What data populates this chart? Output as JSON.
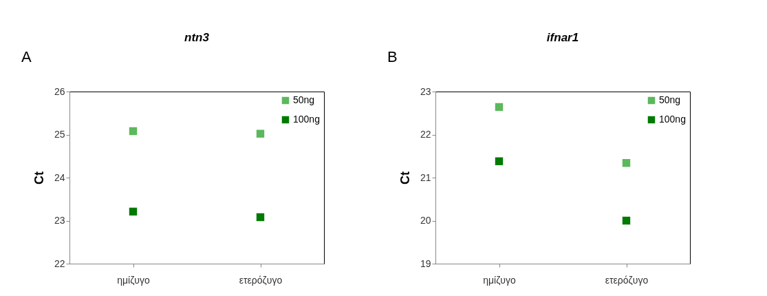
{
  "chart_data": [
    {
      "type": "scatter",
      "title": "ntn3",
      "ylabel": "Ct",
      "annotations": [
        "A"
      ],
      "categories": [
        "ημίζυγο",
        "ετερόζυγο"
      ],
      "ylim": [
        22,
        26
      ],
      "yticks": [
        22,
        23,
        24,
        25,
        26
      ],
      "grid": false,
      "legend": "top right",
      "marker": "square",
      "series": [
        {
          "name": "50ng",
          "color": "#5cb85c",
          "values": [
            25.08,
            25.02
          ]
        },
        {
          "name": "100ng",
          "color": "#007a00",
          "values": [
            23.21,
            23.08
          ]
        }
      ]
    },
    {
      "type": "scatter",
      "title": "ifnar1",
      "ylabel": "Ct",
      "annotations": [
        "B"
      ],
      "categories": [
        "ημίζυγο",
        "ετερόζυγο"
      ],
      "ylim": [
        19,
        23
      ],
      "yticks": [
        19,
        20,
        21,
        22,
        23
      ],
      "grid": false,
      "legend": "top right",
      "marker": "square",
      "series": [
        {
          "name": "50ng",
          "color": "#5cb85c",
          "values": [
            22.64,
            21.34
          ]
        },
        {
          "name": "100ng",
          "color": "#007a00",
          "values": [
            21.38,
            20.0
          ]
        }
      ]
    }
  ]
}
